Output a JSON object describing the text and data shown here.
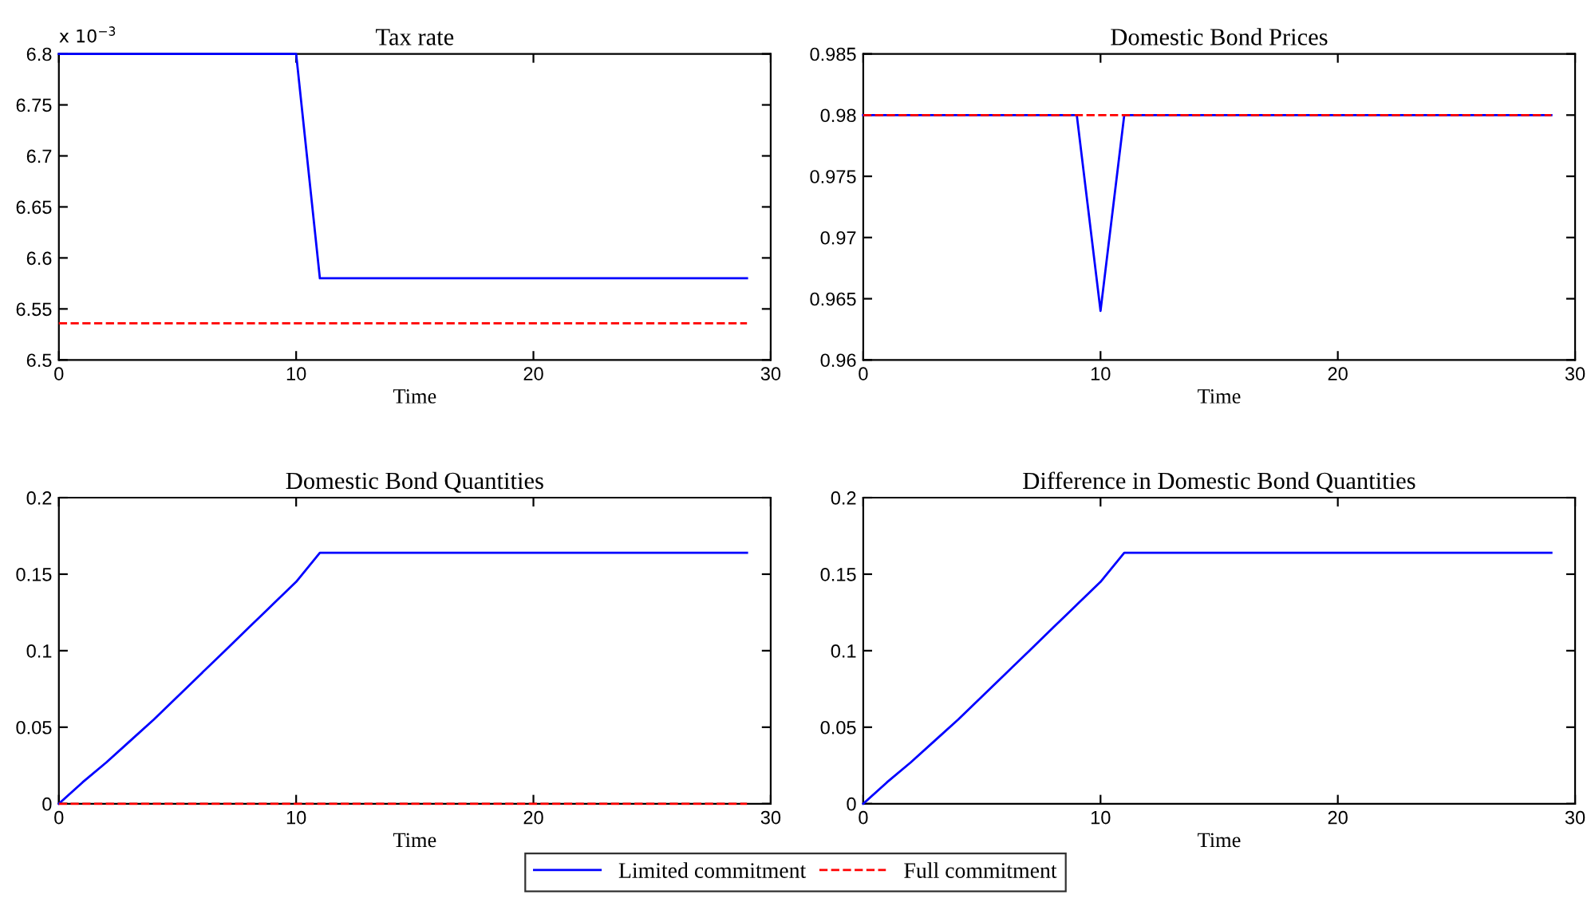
{
  "chart_data": [
    {
      "type": "line",
      "title": "Tax rate",
      "xlabel": "Time",
      "xlim": [
        0,
        30
      ],
      "xticks": [
        0,
        10,
        20,
        30
      ],
      "ylim": [
        6.5,
        6.8
      ],
      "yticks": [
        6.5,
        6.55,
        6.6,
        6.65,
        6.7,
        6.75,
        6.8
      ],
      "grid": false,
      "legend": "bottom",
      "annotations": [
        "x 10$^{−3}$"
      ],
      "x": [
        0,
        1,
        2,
        3,
        4,
        5,
        6,
        7,
        8,
        9,
        10,
        11,
        12,
        13,
        14,
        15,
        16,
        17,
        18,
        19,
        20,
        21,
        22,
        23,
        24,
        25,
        26,
        27,
        28,
        29
      ],
      "series": [
        {
          "name": "Limited commitment",
          "color": "#0000ff",
          "line_style": "solid",
          "values": [
            6.8,
            6.8,
            6.8,
            6.8,
            6.8,
            6.8,
            6.8,
            6.8,
            6.8,
            6.8,
            6.8,
            6.58,
            6.58,
            6.58,
            6.58,
            6.58,
            6.58,
            6.58,
            6.58,
            6.58,
            6.58,
            6.58,
            6.58,
            6.58,
            6.58,
            6.58,
            6.58,
            6.58,
            6.58,
            6.58
          ]
        },
        {
          "name": "Full commitment",
          "color": "#ff0000",
          "line_style": "dashed",
          "values": [
            6.536,
            6.536,
            6.536,
            6.536,
            6.536,
            6.536,
            6.536,
            6.536,
            6.536,
            6.536,
            6.536,
            6.536,
            6.536,
            6.536,
            6.536,
            6.536,
            6.536,
            6.536,
            6.536,
            6.536,
            6.536,
            6.536,
            6.536,
            6.536,
            6.536,
            6.536,
            6.536,
            6.536,
            6.536,
            6.536
          ]
        }
      ]
    },
    {
      "type": "line",
      "title": "Domestic Bond Prices",
      "xlabel": "Time",
      "xlim": [
        0,
        30
      ],
      "xticks": [
        0,
        10,
        20,
        30
      ],
      "ylim": [
        0.96,
        0.985
      ],
      "yticks": [
        0.96,
        0.965,
        0.97,
        0.975,
        0.98,
        0.985
      ],
      "grid": false,
      "x": [
        0,
        1,
        2,
        3,
        4,
        5,
        6,
        7,
        8,
        9,
        10,
        11,
        12,
        13,
        14,
        15,
        16,
        17,
        18,
        19,
        20,
        21,
        22,
        23,
        24,
        25,
        26,
        27,
        28,
        29
      ],
      "series": [
        {
          "color": "#0000ff",
          "line_style": "solid",
          "values": [
            0.98,
            0.98,
            0.98,
            0.98,
            0.98,
            0.98,
            0.98,
            0.98,
            0.98,
            0.98,
            0.964,
            0.98,
            0.98,
            0.98,
            0.98,
            0.98,
            0.98,
            0.98,
            0.98,
            0.98,
            0.98,
            0.98,
            0.98,
            0.98,
            0.98,
            0.98,
            0.98,
            0.98,
            0.98,
            0.98
          ]
        },
        {
          "color": "#ff0000",
          "line_style": "dashed",
          "values": [
            0.98,
            0.98,
            0.98,
            0.98,
            0.98,
            0.98,
            0.98,
            0.98,
            0.98,
            0.98,
            0.98,
            0.98,
            0.98,
            0.98,
            0.98,
            0.98,
            0.98,
            0.98,
            0.98,
            0.98,
            0.98,
            0.98,
            0.98,
            0.98,
            0.98,
            0.98,
            0.98,
            0.98,
            0.98,
            0.98
          ]
        }
      ]
    },
    {
      "type": "line",
      "title": "Domestic Bond Quantities",
      "xlabel": "Time",
      "xlim": [
        0,
        30
      ],
      "xticks": [
        0,
        10,
        20,
        30
      ],
      "ylim": [
        0,
        0.2
      ],
      "yticks": [
        0,
        0.05,
        0.1,
        0.15,
        0.2
      ],
      "grid": false,
      "x": [
        0,
        1,
        2,
        3,
        4,
        5,
        6,
        7,
        8,
        9,
        10,
        11,
        12,
        13,
        14,
        15,
        16,
        17,
        18,
        19,
        20,
        21,
        22,
        23,
        24,
        25,
        26,
        27,
        28,
        29
      ],
      "series": [
        {
          "color": "#0000ff",
          "line_style": "solid",
          "values": [
            0,
            0.014,
            0.027,
            0.041,
            0.055,
            0.07,
            0.085,
            0.1,
            0.115,
            0.13,
            0.145,
            0.164,
            0.164,
            0.164,
            0.164,
            0.164,
            0.164,
            0.164,
            0.164,
            0.164,
            0.164,
            0.164,
            0.164,
            0.164,
            0.164,
            0.164,
            0.164,
            0.164,
            0.164,
            0.164
          ]
        },
        {
          "color": "#ff0000",
          "line_style": "dashed",
          "values": [
            0,
            0,
            0,
            0,
            0,
            0,
            0,
            0,
            0,
            0,
            0,
            0,
            0,
            0,
            0,
            0,
            0,
            0,
            0,
            0,
            0,
            0,
            0,
            0,
            0,
            0,
            0,
            0,
            0,
            0
          ]
        }
      ]
    },
    {
      "type": "line",
      "title": "Difference in Domestic Bond Quantities",
      "xlabel": "Time",
      "xlim": [
        0,
        30
      ],
      "xticks": [
        0,
        10,
        20,
        30
      ],
      "ylim": [
        0,
        0.2
      ],
      "yticks": [
        0,
        0.05,
        0.1,
        0.15,
        0.2
      ],
      "grid": false,
      "x": [
        0,
        1,
        2,
        3,
        4,
        5,
        6,
        7,
        8,
        9,
        10,
        11,
        12,
        13,
        14,
        15,
        16,
        17,
        18,
        19,
        20,
        21,
        22,
        23,
        24,
        25,
        26,
        27,
        28,
        29
      ],
      "series": [
        {
          "color": "#0000ff",
          "line_style": "solid",
          "values": [
            0,
            0.014,
            0.027,
            0.041,
            0.055,
            0.07,
            0.085,
            0.1,
            0.115,
            0.13,
            0.145,
            0.164,
            0.164,
            0.164,
            0.164,
            0.164,
            0.164,
            0.164,
            0.164,
            0.164,
            0.164,
            0.164,
            0.164,
            0.164,
            0.164,
            0.164,
            0.164,
            0.164,
            0.164,
            0.164
          ]
        }
      ]
    }
  ]
}
